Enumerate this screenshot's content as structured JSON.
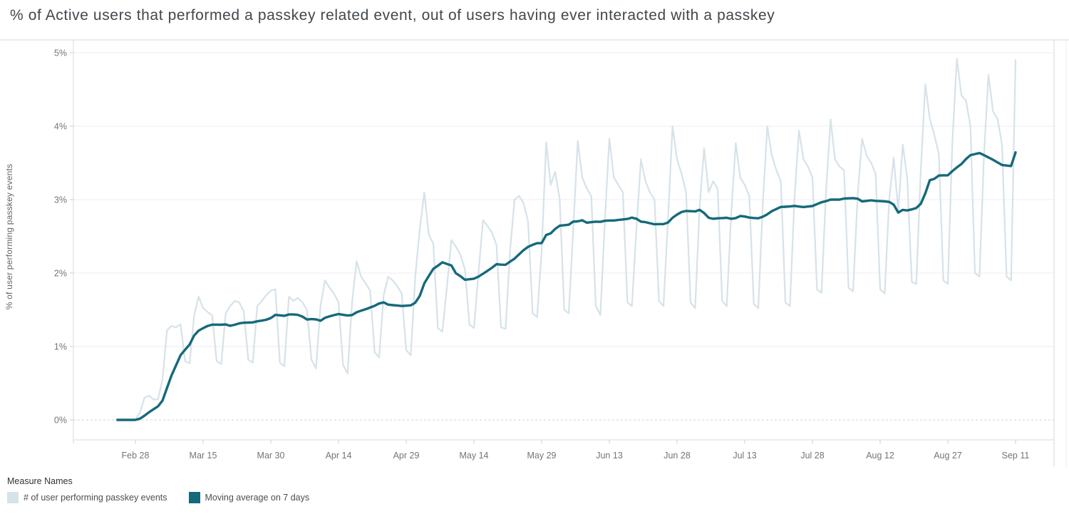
{
  "title": "% of Active users that performed a passkey related event, out of users having ever interacted with a passkey",
  "y_axis": {
    "title": "% of user performing passkey events",
    "tick_labels": [
      "0%",
      "1%",
      "2%",
      "3%",
      "4%",
      "5%"
    ],
    "tick_values": [
      0,
      1,
      2,
      3,
      4,
      5
    ]
  },
  "x_axis": {
    "tick_labels": [
      "Feb 28",
      "Mar 15",
      "Mar 30",
      "Apr 14",
      "Apr 29",
      "May 14",
      "May 29",
      "Jun 13",
      "Jun 28",
      "Jul 13",
      "Jul 28",
      "Aug 12",
      "Aug 27",
      "Sep 11"
    ],
    "tick_interval_days": 15
  },
  "legend": {
    "title": "Measure Names",
    "items": [
      {
        "label": "# of user performing passkey events",
        "color": "#d6e3e9"
      },
      {
        "label": "Moving average on 7 days",
        "color": "#15697b"
      }
    ]
  },
  "chart_data": {
    "type": "line",
    "title": "% of Active users that performed a passkey related event, out of users having ever interacted with a passkey",
    "xlabel": "",
    "ylabel": "% of user performing passkey events",
    "ylim": [
      0,
      5
    ],
    "y_unit": "%",
    "grid": "horizontal",
    "legend_position": "bottom-left",
    "x_start_label": "Feb 24",
    "x_end_label": "Sep 11",
    "x_step_days": 1,
    "x_tick_labels": [
      "Feb 28",
      "Mar 15",
      "Mar 30",
      "Apr 14",
      "Apr 29",
      "May 14",
      "May 29",
      "Jun 13",
      "Jun 28",
      "Jul 13",
      "Jul 28",
      "Aug 12",
      "Aug 27",
      "Sep 11"
    ],
    "series": [
      {
        "name": "# of user performing passkey events",
        "color": "#d6e3e9",
        "stroke_width": 2.25,
        "values_pct": [
          0,
          0,
          0,
          0,
          0,
          0.1,
          0.3,
          0.33,
          0.28,
          0.28,
          0.55,
          1.22,
          1.28,
          1.26,
          1.3,
          0.8,
          0.77,
          1.42,
          1.68,
          1.52,
          1.47,
          1.42,
          0.8,
          0.76,
          1.45,
          1.55,
          1.62,
          1.6,
          1.48,
          0.82,
          0.78,
          1.55,
          1.62,
          1.7,
          1.76,
          1.78,
          0.78,
          0.73,
          1.68,
          1.62,
          1.66,
          1.6,
          1.5,
          0.82,
          0.7,
          1.55,
          1.9,
          1.8,
          1.72,
          1.6,
          0.75,
          0.63,
          1.6,
          2.16,
          1.95,
          1.86,
          1.76,
          0.92,
          0.85,
          1.7,
          1.95,
          1.9,
          1.82,
          1.72,
          0.95,
          0.88,
          1.95,
          2.6,
          3.1,
          2.52,
          2.4,
          1.25,
          1.2,
          1.8,
          2.45,
          2.36,
          2.25,
          2.05,
          1.3,
          1.25,
          2.0,
          2.72,
          2.64,
          2.55,
          2.38,
          1.26,
          1.24,
          2.3,
          3.0,
          3.05,
          2.95,
          2.7,
          1.45,
          1.4,
          2.3,
          3.78,
          3.2,
          3.38,
          3.0,
          1.5,
          1.45,
          2.6,
          3.8,
          3.3,
          3.15,
          3.05,
          1.55,
          1.43,
          2.7,
          3.83,
          3.3,
          3.2,
          3.1,
          1.6,
          1.55,
          2.6,
          3.55,
          3.25,
          3.1,
          3.0,
          1.62,
          1.55,
          2.75,
          4.0,
          3.55,
          3.35,
          3.1,
          1.6,
          1.52,
          2.9,
          3.7,
          3.1,
          3.25,
          3.15,
          1.62,
          1.55,
          2.8,
          3.77,
          3.3,
          3.2,
          3.05,
          1.58,
          1.52,
          2.95,
          4.0,
          3.6,
          3.4,
          3.25,
          1.6,
          1.55,
          3.0,
          3.94,
          3.55,
          3.45,
          3.3,
          1.78,
          1.73,
          3.1,
          4.09,
          3.55,
          3.45,
          3.4,
          1.8,
          1.75,
          3.05,
          3.83,
          3.6,
          3.5,
          3.35,
          1.78,
          1.72,
          3.0,
          3.57,
          2.85,
          3.75,
          3.3,
          1.88,
          1.85,
          3.4,
          4.57,
          4.1,
          3.88,
          3.62,
          1.9,
          1.85,
          3.8,
          4.92,
          4.42,
          4.35,
          4.0,
          2.0,
          1.95,
          3.6,
          4.7,
          4.2,
          4.1,
          3.75,
          1.95,
          1.9,
          4.9
        ]
      },
      {
        "name": "Moving average on 7 days",
        "color": "#15697b",
        "stroke_width": 3.4,
        "derived": "trailing 7-day moving average of the daily series",
        "window_days": 7
      }
    ]
  },
  "style": {
    "grid_color": "#ededed",
    "zero_line_color": "#d2d2d2",
    "border_color": "#d9d9d9",
    "tick_color": "#c9c9c9",
    "tick_label_color": "#757575",
    "title_color": "#41474d"
  }
}
